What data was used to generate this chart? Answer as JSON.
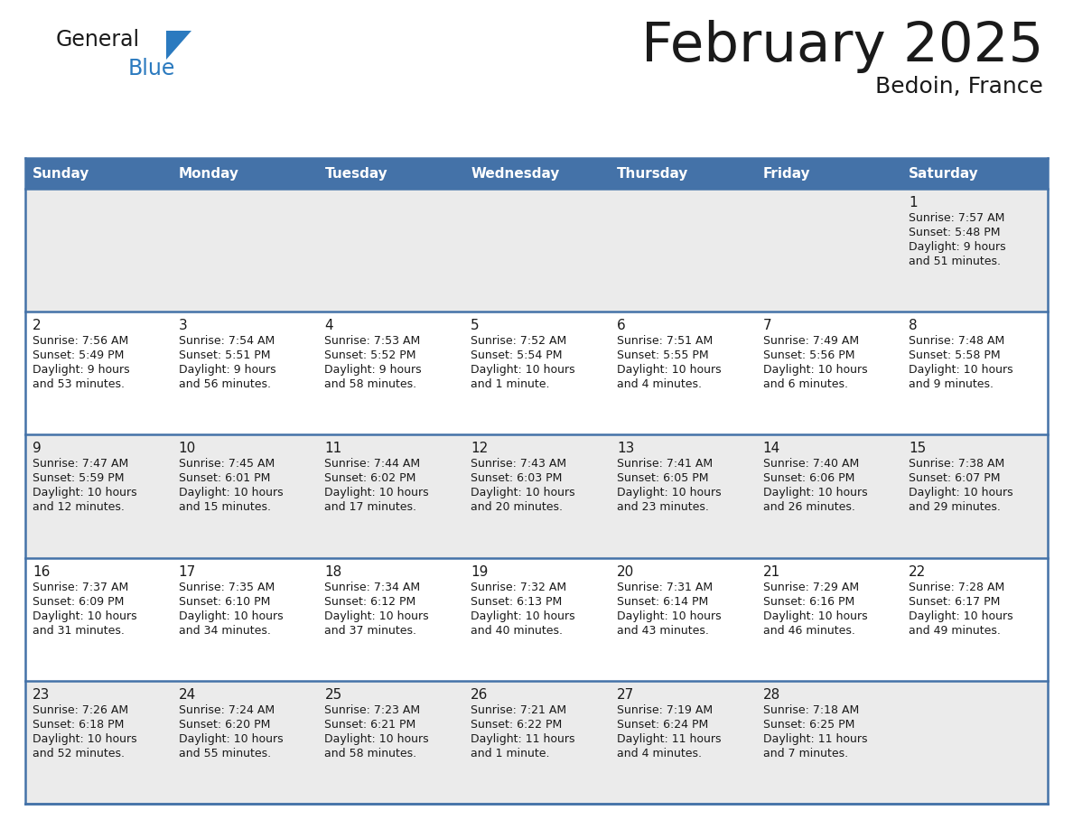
{
  "title": "February 2025",
  "subtitle": "Bedoin, France",
  "header_color": "#4472a8",
  "header_text_color": "#ffffff",
  "day_names": [
    "Sunday",
    "Monday",
    "Tuesday",
    "Wednesday",
    "Thursday",
    "Friday",
    "Saturday"
  ],
  "title_color": "#1a1a1a",
  "subtitle_color": "#1a1a1a",
  "cell_bg_odd": "#ebebeb",
  "cell_bg_even": "#ffffff",
  "border_color": "#4472a8",
  "day_num_color": "#1a1a1a",
  "info_color": "#1a1a1a",
  "logo_general_color": "#1a1a1a",
  "logo_blue_color": "#2b7abf",
  "logo_triangle_color": "#2b7abf",
  "days_data": [
    {
      "day": 1,
      "col": 6,
      "row": 0,
      "sunrise": "7:57 AM",
      "sunset": "5:48 PM",
      "daylight": "9 hours and 51 minutes."
    },
    {
      "day": 2,
      "col": 0,
      "row": 1,
      "sunrise": "7:56 AM",
      "sunset": "5:49 PM",
      "daylight": "9 hours and 53 minutes."
    },
    {
      "day": 3,
      "col": 1,
      "row": 1,
      "sunrise": "7:54 AM",
      "sunset": "5:51 PM",
      "daylight": "9 hours and 56 minutes."
    },
    {
      "day": 4,
      "col": 2,
      "row": 1,
      "sunrise": "7:53 AM",
      "sunset": "5:52 PM",
      "daylight": "9 hours and 58 minutes."
    },
    {
      "day": 5,
      "col": 3,
      "row": 1,
      "sunrise": "7:52 AM",
      "sunset": "5:54 PM",
      "daylight": "10 hours and 1 minute."
    },
    {
      "day": 6,
      "col": 4,
      "row": 1,
      "sunrise": "7:51 AM",
      "sunset": "5:55 PM",
      "daylight": "10 hours and 4 minutes."
    },
    {
      "day": 7,
      "col": 5,
      "row": 1,
      "sunrise": "7:49 AM",
      "sunset": "5:56 PM",
      "daylight": "10 hours and 6 minutes."
    },
    {
      "day": 8,
      "col": 6,
      "row": 1,
      "sunrise": "7:48 AM",
      "sunset": "5:58 PM",
      "daylight": "10 hours and 9 minutes."
    },
    {
      "day": 9,
      "col": 0,
      "row": 2,
      "sunrise": "7:47 AM",
      "sunset": "5:59 PM",
      "daylight": "10 hours and 12 minutes."
    },
    {
      "day": 10,
      "col": 1,
      "row": 2,
      "sunrise": "7:45 AM",
      "sunset": "6:01 PM",
      "daylight": "10 hours and 15 minutes."
    },
    {
      "day": 11,
      "col": 2,
      "row": 2,
      "sunrise": "7:44 AM",
      "sunset": "6:02 PM",
      "daylight": "10 hours and 17 minutes."
    },
    {
      "day": 12,
      "col": 3,
      "row": 2,
      "sunrise": "7:43 AM",
      "sunset": "6:03 PM",
      "daylight": "10 hours and 20 minutes."
    },
    {
      "day": 13,
      "col": 4,
      "row": 2,
      "sunrise": "7:41 AM",
      "sunset": "6:05 PM",
      "daylight": "10 hours and 23 minutes."
    },
    {
      "day": 14,
      "col": 5,
      "row": 2,
      "sunrise": "7:40 AM",
      "sunset": "6:06 PM",
      "daylight": "10 hours and 26 minutes."
    },
    {
      "day": 15,
      "col": 6,
      "row": 2,
      "sunrise": "7:38 AM",
      "sunset": "6:07 PM",
      "daylight": "10 hours and 29 minutes."
    },
    {
      "day": 16,
      "col": 0,
      "row": 3,
      "sunrise": "7:37 AM",
      "sunset": "6:09 PM",
      "daylight": "10 hours and 31 minutes."
    },
    {
      "day": 17,
      "col": 1,
      "row": 3,
      "sunrise": "7:35 AM",
      "sunset": "6:10 PM",
      "daylight": "10 hours and 34 minutes."
    },
    {
      "day": 18,
      "col": 2,
      "row": 3,
      "sunrise": "7:34 AM",
      "sunset": "6:12 PM",
      "daylight": "10 hours and 37 minutes."
    },
    {
      "day": 19,
      "col": 3,
      "row": 3,
      "sunrise": "7:32 AM",
      "sunset": "6:13 PM",
      "daylight": "10 hours and 40 minutes."
    },
    {
      "day": 20,
      "col": 4,
      "row": 3,
      "sunrise": "7:31 AM",
      "sunset": "6:14 PM",
      "daylight": "10 hours and 43 minutes."
    },
    {
      "day": 21,
      "col": 5,
      "row": 3,
      "sunrise": "7:29 AM",
      "sunset": "6:16 PM",
      "daylight": "10 hours and 46 minutes."
    },
    {
      "day": 22,
      "col": 6,
      "row": 3,
      "sunrise": "7:28 AM",
      "sunset": "6:17 PM",
      "daylight": "10 hours and 49 minutes."
    },
    {
      "day": 23,
      "col": 0,
      "row": 4,
      "sunrise": "7:26 AM",
      "sunset": "6:18 PM",
      "daylight": "10 hours and 52 minutes."
    },
    {
      "day": 24,
      "col": 1,
      "row": 4,
      "sunrise": "7:24 AM",
      "sunset": "6:20 PM",
      "daylight": "10 hours and 55 minutes."
    },
    {
      "day": 25,
      "col": 2,
      "row": 4,
      "sunrise": "7:23 AM",
      "sunset": "6:21 PM",
      "daylight": "10 hours and 58 minutes."
    },
    {
      "day": 26,
      "col": 3,
      "row": 4,
      "sunrise": "7:21 AM",
      "sunset": "6:22 PM",
      "daylight": "11 hours and 1 minute."
    },
    {
      "day": 27,
      "col": 4,
      "row": 4,
      "sunrise": "7:19 AM",
      "sunset": "6:24 PM",
      "daylight": "11 hours and 4 minutes."
    },
    {
      "day": 28,
      "col": 5,
      "row": 4,
      "sunrise": "7:18 AM",
      "sunset": "6:25 PM",
      "daylight": "11 hours and 7 minutes."
    }
  ]
}
